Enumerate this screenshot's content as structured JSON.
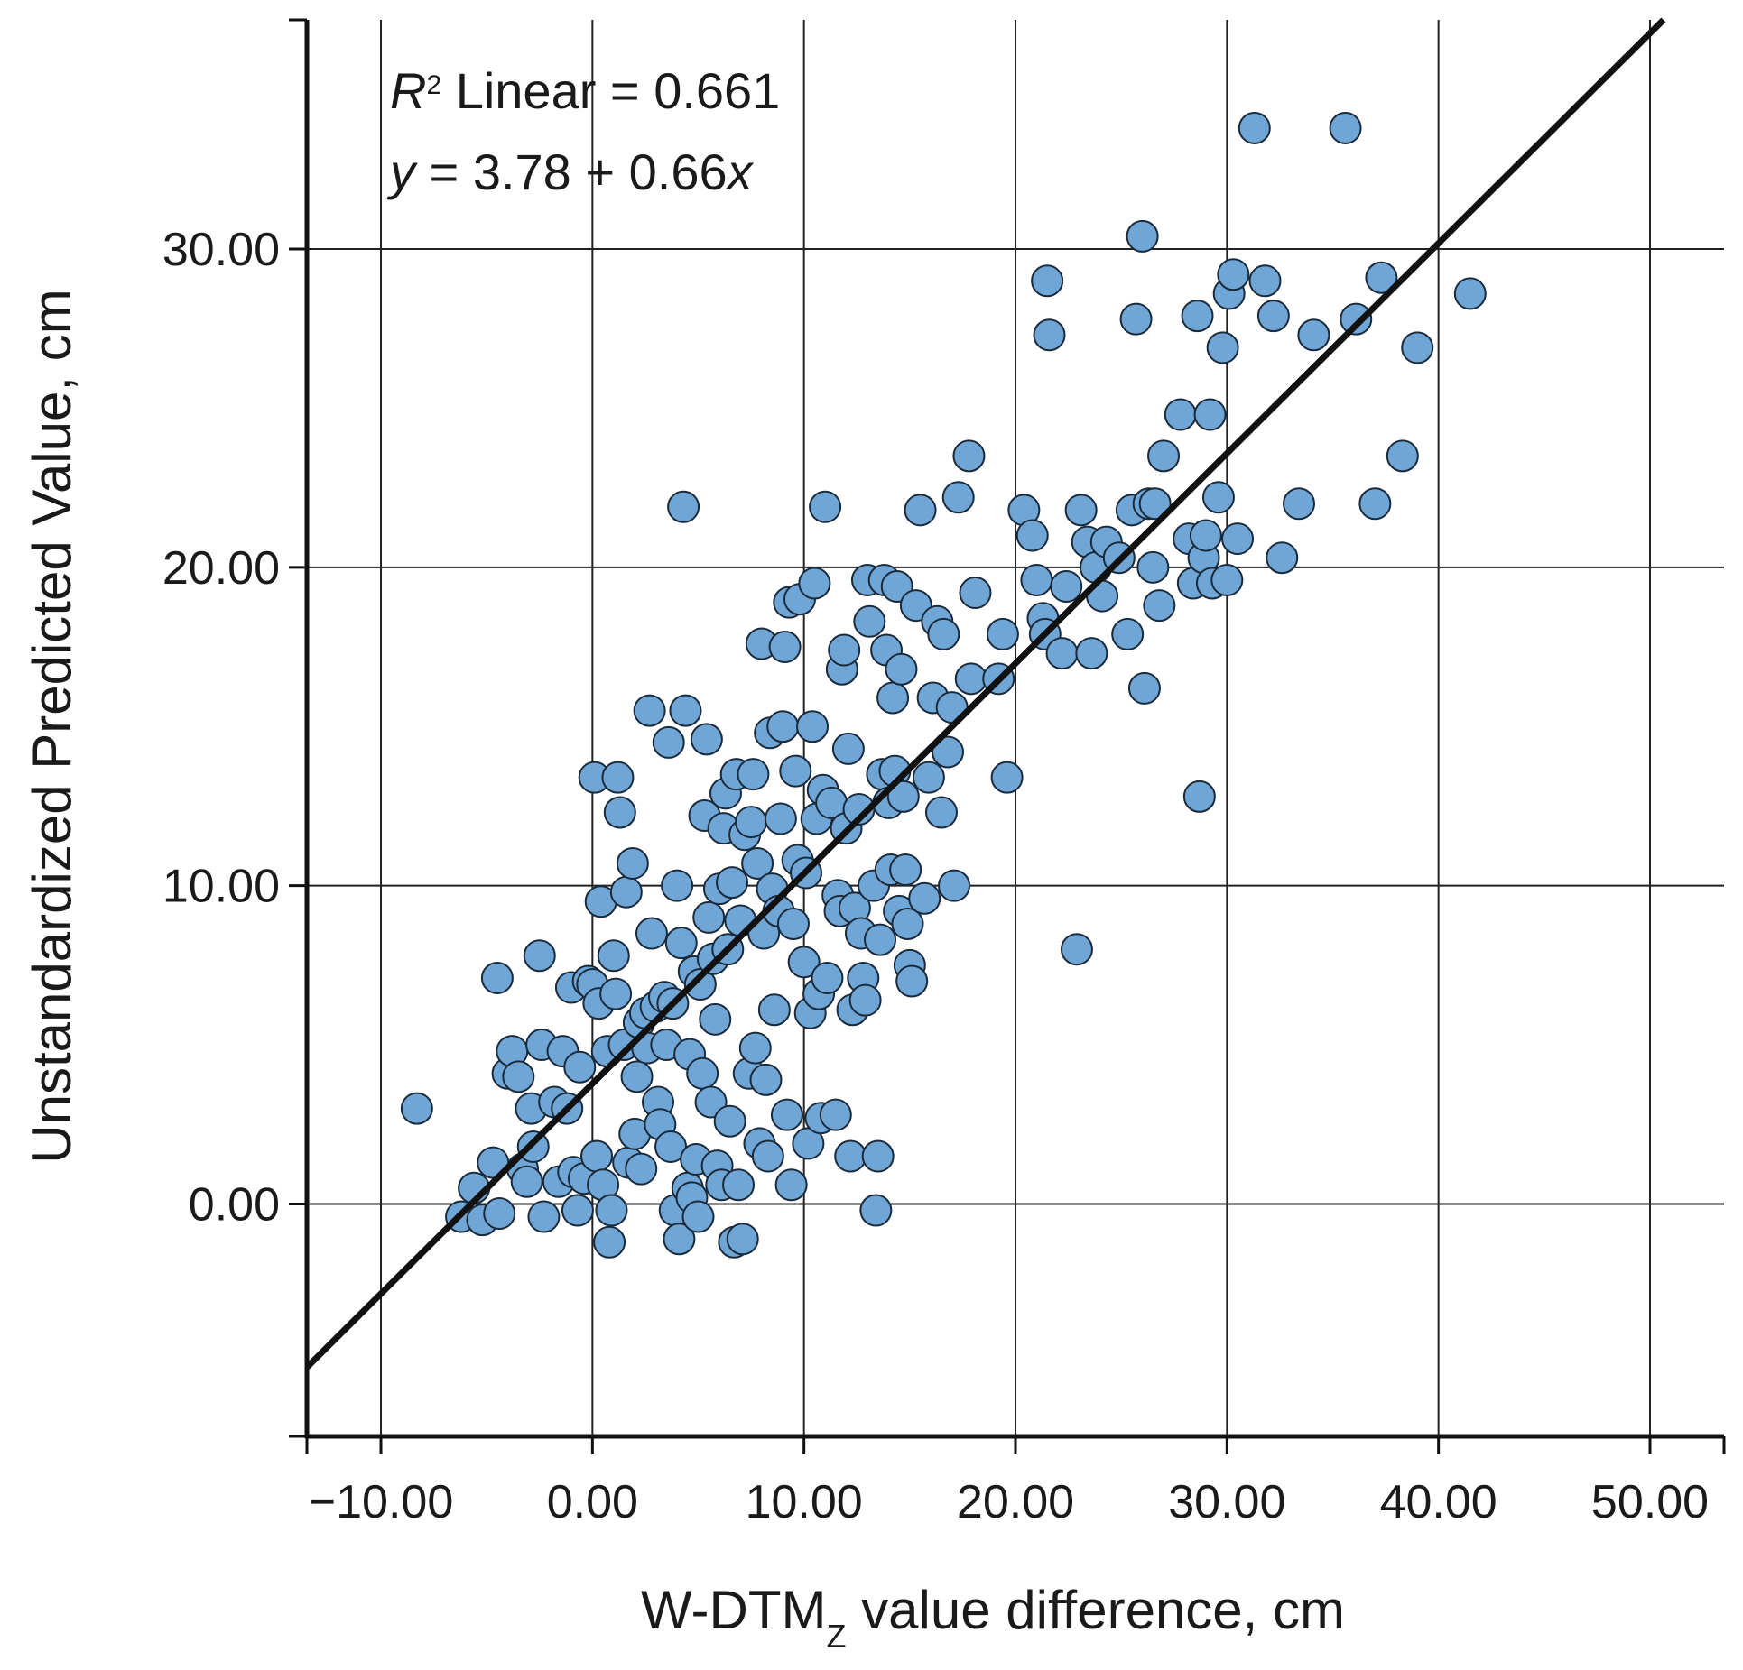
{
  "chart_data": {
    "type": "scatter",
    "title": "",
    "xlabel": {
      "main": "W-DTM",
      "sub": "Z",
      "suffix": " value difference, cm"
    },
    "ylabel": "Unstandardized Predicted Value, cm",
    "xlim": [
      -13.5,
      53.5
    ],
    "ylim": [
      -7.3,
      37.2
    ],
    "x_ticks": [
      -10,
      0,
      10,
      20,
      30,
      40,
      50
    ],
    "x_tick_labels": [
      "−10.00",
      "0.00",
      "10.00",
      "20.00",
      "30.00",
      "40.00",
      "50.00"
    ],
    "y_ticks": [
      0,
      10,
      20,
      30
    ],
    "y_tick_labels": [
      "0.00",
      "10.00",
      "20.00",
      "30.00"
    ],
    "grid": true,
    "fit_line": {
      "intercept": 3.78,
      "slope": 0.66
    },
    "annotations": {
      "r2_label": "R",
      "r2_sup": "2",
      "r2_rest": " Linear = 0.661",
      "eq_y": "y",
      "eq_mid": " = 3.78 + 0.66",
      "eq_x": "x"
    },
    "marker_color": "#6fa6d6",
    "marker_edge": "#1a2a3a",
    "points": [
      [
        -8.3,
        3.0
      ],
      [
        -6.2,
        -0.4
      ],
      [
        -5.6,
        0.5
      ],
      [
        -5.2,
        -0.5
      ],
      [
        -4.7,
        1.3
      ],
      [
        -4.5,
        7.1
      ],
      [
        -4.4,
        -0.3
      ],
      [
        -4.0,
        4.1
      ],
      [
        -3.8,
        4.8
      ],
      [
        -3.5,
        4.0
      ],
      [
        -3.3,
        1.1
      ],
      [
        -3.1,
        0.7
      ],
      [
        -2.9,
        3.0
      ],
      [
        -2.8,
        1.8
      ],
      [
        -2.5,
        7.8
      ],
      [
        -2.4,
        5.0
      ],
      [
        -2.3,
        -0.4
      ],
      [
        -1.8,
        3.2
      ],
      [
        -1.6,
        0.7
      ],
      [
        -1.4,
        4.8
      ],
      [
        -1.2,
        3.0
      ],
      [
        -1.0,
        6.8
      ],
      [
        -0.9,
        1.0
      ],
      [
        -0.7,
        -0.2
      ],
      [
        -0.6,
        4.3
      ],
      [
        -0.4,
        0.8
      ],
      [
        -0.2,
        7.0
      ],
      [
        0.0,
        6.9
      ],
      [
        0.1,
        13.4
      ],
      [
        0.2,
        1.5
      ],
      [
        0.3,
        6.3
      ],
      [
        0.4,
        9.5
      ],
      [
        0.5,
        0.6
      ],
      [
        0.7,
        4.8
      ],
      [
        0.8,
        -1.2
      ],
      [
        0.9,
        -0.2
      ],
      [
        1.0,
        7.8
      ],
      [
        1.1,
        6.6
      ],
      [
        1.2,
        13.4
      ],
      [
        1.3,
        12.3
      ],
      [
        1.5,
        5.0
      ],
      [
        1.6,
        9.8
      ],
      [
        1.7,
        1.3
      ],
      [
        1.9,
        10.7
      ],
      [
        2.0,
        2.2
      ],
      [
        2.1,
        4.0
      ],
      [
        2.2,
        5.7
      ],
      [
        2.3,
        1.1
      ],
      [
        2.5,
        6.0
      ],
      [
        2.6,
        4.9
      ],
      [
        2.7,
        15.5
      ],
      [
        2.8,
        8.5
      ],
      [
        3.0,
        6.2
      ],
      [
        3.1,
        3.2
      ],
      [
        3.2,
        2.5
      ],
      [
        3.4,
        6.5
      ],
      [
        3.5,
        5.0
      ],
      [
        3.6,
        14.5
      ],
      [
        3.7,
        1.8
      ],
      [
        3.8,
        6.3
      ],
      [
        3.9,
        -0.2
      ],
      [
        4.0,
        10.0
      ],
      [
        4.1,
        -1.1
      ],
      [
        4.2,
        8.2
      ],
      [
        4.3,
        21.9
      ],
      [
        4.4,
        15.5
      ],
      [
        4.5,
        0.5
      ],
      [
        4.6,
        4.7
      ],
      [
        4.7,
        0.2
      ],
      [
        4.8,
        7.3
      ],
      [
        4.9,
        1.4
      ],
      [
        5.0,
        -0.4
      ],
      [
        5.1,
        6.9
      ],
      [
        5.2,
        4.1
      ],
      [
        5.3,
        12.2
      ],
      [
        5.4,
        14.6
      ],
      [
        5.5,
        9.0
      ],
      [
        5.6,
        3.2
      ],
      [
        5.7,
        7.7
      ],
      [
        5.8,
        5.8
      ],
      [
        5.9,
        1.2
      ],
      [
        6.0,
        9.9
      ],
      [
        6.1,
        0.6
      ],
      [
        6.2,
        11.8
      ],
      [
        6.3,
        12.9
      ],
      [
        6.4,
        8.0
      ],
      [
        6.5,
        2.6
      ],
      [
        6.6,
        10.1
      ],
      [
        6.7,
        -1.2
      ],
      [
        6.8,
        13.5
      ],
      [
        6.9,
        0.6
      ],
      [
        7.0,
        8.9
      ],
      [
        7.1,
        -1.1
      ],
      [
        7.2,
        11.6
      ],
      [
        7.4,
        4.1
      ],
      [
        7.5,
        12.0
      ],
      [
        7.6,
        13.5
      ],
      [
        7.7,
        4.9
      ],
      [
        7.8,
        10.7
      ],
      [
        7.9,
        1.9
      ],
      [
        8.0,
        17.6
      ],
      [
        8.1,
        8.5
      ],
      [
        8.2,
        3.9
      ],
      [
        8.3,
        1.5
      ],
      [
        8.4,
        14.8
      ],
      [
        8.5,
        9.9
      ],
      [
        8.6,
        6.1
      ],
      [
        8.8,
        9.2
      ],
      [
        8.9,
        12.1
      ],
      [
        9.0,
        15.0
      ],
      [
        9.1,
        17.5
      ],
      [
        9.2,
        2.8
      ],
      [
        9.3,
        18.9
      ],
      [
        9.4,
        0.6
      ],
      [
        9.5,
        8.8
      ],
      [
        9.6,
        13.6
      ],
      [
        9.7,
        10.8
      ],
      [
        9.8,
        19.0
      ],
      [
        10.0,
        7.6
      ],
      [
        10.1,
        10.4
      ],
      [
        10.2,
        1.9
      ],
      [
        10.3,
        6.0
      ],
      [
        10.4,
        15.0
      ],
      [
        10.5,
        19.5
      ],
      [
        10.6,
        12.1
      ],
      [
        10.7,
        6.6
      ],
      [
        10.8,
        2.7
      ],
      [
        10.9,
        13.0
      ],
      [
        11.0,
        21.9
      ],
      [
        11.1,
        7.1
      ],
      [
        11.3,
        12.6
      ],
      [
        11.5,
        2.8
      ],
      [
        11.6,
        9.7
      ],
      [
        11.7,
        9.2
      ],
      [
        11.8,
        16.8
      ],
      [
        11.9,
        17.4
      ],
      [
        12.0,
        11.8
      ],
      [
        12.1,
        14.3
      ],
      [
        12.2,
        1.5
      ],
      [
        12.3,
        6.1
      ],
      [
        12.4,
        9.3
      ],
      [
        12.6,
        12.4
      ],
      [
        12.7,
        8.5
      ],
      [
        12.8,
        7.1
      ],
      [
        12.9,
        6.4
      ],
      [
        13.0,
        19.6
      ],
      [
        13.1,
        18.3
      ],
      [
        13.3,
        10.0
      ],
      [
        13.4,
        -0.2
      ],
      [
        13.5,
        1.5
      ],
      [
        13.6,
        8.3
      ],
      [
        13.7,
        13.5
      ],
      [
        13.8,
        19.6
      ],
      [
        13.9,
        17.4
      ],
      [
        14.0,
        12.6
      ],
      [
        14.1,
        10.5
      ],
      [
        14.2,
        15.9
      ],
      [
        14.3,
        13.6
      ],
      [
        14.4,
        19.4
      ],
      [
        14.5,
        9.2
      ],
      [
        14.6,
        16.8
      ],
      [
        14.7,
        12.8
      ],
      [
        14.8,
        10.5
      ],
      [
        14.9,
        8.8
      ],
      [
        15.0,
        7.5
      ],
      [
        15.1,
        7.0
      ],
      [
        15.3,
        18.8
      ],
      [
        15.5,
        21.8
      ],
      [
        15.7,
        9.6
      ],
      [
        15.9,
        13.4
      ],
      [
        16.1,
        15.9
      ],
      [
        16.3,
        18.3
      ],
      [
        16.5,
        12.3
      ],
      [
        16.6,
        17.9
      ],
      [
        16.8,
        14.2
      ],
      [
        17.0,
        15.6
      ],
      [
        17.1,
        10.0
      ],
      [
        17.3,
        22.2
      ],
      [
        17.8,
        23.5
      ],
      [
        17.9,
        16.5
      ],
      [
        18.1,
        19.2
      ],
      [
        19.2,
        16.5
      ],
      [
        19.4,
        17.9
      ],
      [
        19.6,
        13.4
      ],
      [
        20.4,
        21.8
      ],
      [
        20.8,
        21.0
      ],
      [
        21.0,
        19.6
      ],
      [
        21.3,
        18.4
      ],
      [
        21.4,
        17.9
      ],
      [
        21.5,
        29.0
      ],
      [
        21.6,
        27.3
      ],
      [
        22.2,
        17.3
      ],
      [
        22.4,
        19.4
      ],
      [
        22.9,
        8.0
      ],
      [
        23.1,
        21.8
      ],
      [
        23.4,
        20.8
      ],
      [
        23.6,
        17.3
      ],
      [
        23.8,
        20.0
      ],
      [
        24.1,
        19.1
      ],
      [
        24.3,
        20.8
      ],
      [
        24.9,
        20.3
      ],
      [
        25.3,
        17.9
      ],
      [
        25.5,
        21.8
      ],
      [
        25.7,
        27.8
      ],
      [
        26.0,
        30.4
      ],
      [
        26.1,
        16.2
      ],
      [
        26.3,
        22.0
      ],
      [
        26.5,
        20.0
      ],
      [
        26.6,
        22.0
      ],
      [
        26.8,
        18.8
      ],
      [
        27.0,
        23.5
      ],
      [
        27.8,
        24.8
      ],
      [
        28.2,
        20.9
      ],
      [
        28.4,
        19.5
      ],
      [
        28.6,
        27.9
      ],
      [
        28.7,
        12.8
      ],
      [
        28.9,
        20.3
      ],
      [
        29.0,
        21.0
      ],
      [
        29.2,
        24.8
      ],
      [
        29.3,
        19.5
      ],
      [
        29.6,
        22.2
      ],
      [
        29.8,
        26.9
      ],
      [
        30.0,
        19.6
      ],
      [
        30.1,
        28.6
      ],
      [
        30.3,
        29.2
      ],
      [
        30.5,
        20.9
      ],
      [
        31.3,
        33.8
      ],
      [
        31.8,
        29.0
      ],
      [
        32.2,
        27.9
      ],
      [
        32.6,
        20.3
      ],
      [
        34.1,
        27.3
      ],
      [
        33.4,
        22.0
      ],
      [
        35.6,
        33.8
      ],
      [
        36.1,
        27.8
      ],
      [
        37.0,
        22.0
      ],
      [
        37.3,
        29.1
      ],
      [
        38.3,
        23.5
      ],
      [
        39.0,
        26.9
      ],
      [
        41.5,
        28.6
      ]
    ]
  }
}
